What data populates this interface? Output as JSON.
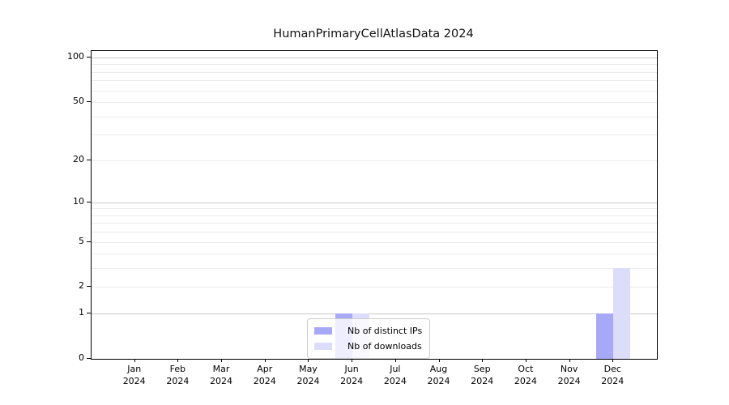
{
  "chart_data": {
    "type": "bar",
    "title": "HumanPrimaryCellAtlasData 2024",
    "categories": [
      {
        "month": "Jan",
        "year": "2024"
      },
      {
        "month": "Feb",
        "year": "2024"
      },
      {
        "month": "Mar",
        "year": "2024"
      },
      {
        "month": "Apr",
        "year": "2024"
      },
      {
        "month": "May",
        "year": "2024"
      },
      {
        "month": "Jun",
        "year": "2024"
      },
      {
        "month": "Jul",
        "year": "2024"
      },
      {
        "month": "Aug",
        "year": "2024"
      },
      {
        "month": "Sep",
        "year": "2024"
      },
      {
        "month": "Oct",
        "year": "2024"
      },
      {
        "month": "Nov",
        "year": "2024"
      },
      {
        "month": "Dec",
        "year": "2024"
      }
    ],
    "series": [
      {
        "name": "Nb of distinct IPs",
        "color": "#a8a8f8",
        "values": [
          0,
          0,
          0,
          0,
          0,
          1,
          0,
          0,
          0,
          0,
          0,
          1
        ]
      },
      {
        "name": "Nb of downloads",
        "color": "#dcdcfb",
        "values": [
          0,
          0,
          0,
          0,
          0,
          1,
          0,
          0,
          0,
          0,
          0,
          3
        ]
      }
    ],
    "xlabel": "",
    "ylabel": "",
    "yscale": "log1p",
    "ylim": [
      0,
      110.4
    ],
    "yticks": [
      0,
      1,
      2,
      5,
      10,
      20,
      50,
      100
    ],
    "major_gridlines": [
      1,
      10,
      100
    ],
    "minor_gridlines": [
      2,
      3,
      4,
      5,
      6,
      7,
      8,
      9,
      20,
      30,
      40,
      50,
      60,
      70,
      80,
      90
    ],
    "grid_color_major": "#c8c8c8",
    "grid_color_minor": "#ececec",
    "legend_position": "lower center",
    "grid": "on"
  }
}
